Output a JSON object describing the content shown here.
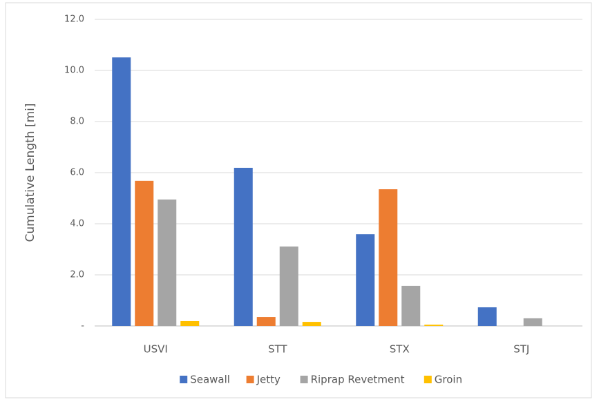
{
  "chart_data": {
    "type": "bar",
    "y_label": "Cumulative Length [mi]",
    "categories": [
      "USVI",
      "STT",
      "STX",
      "STJ"
    ],
    "series": [
      {
        "name": "Seawall",
        "color": "#4472c4",
        "values": [
          10.51,
          6.19,
          3.59,
          0.73
        ]
      },
      {
        "name": "Jetty",
        "color": "#ed7d31",
        "values": [
          5.68,
          0.35,
          5.35,
          0
        ]
      },
      {
        "name": "Riprap Revetment",
        "color": "#a5a5a5",
        "values": [
          4.95,
          3.11,
          1.57,
          0.3
        ]
      },
      {
        "name": "Groin",
        "color": "#ffc000",
        "values": [
          0.19,
          0.16,
          0.05,
          0
        ]
      }
    ],
    "ylim": [
      0,
      12
    ],
    "yticks": [
      {
        "value": 0,
        "label": "-"
      },
      {
        "value": 2,
        "label": "2.0"
      },
      {
        "value": 4,
        "label": "4.0"
      },
      {
        "value": 6,
        "label": "6.0"
      },
      {
        "value": 8,
        "label": "8.0"
      },
      {
        "value": 10,
        "label": "10.0"
      },
      {
        "value": 12,
        "label": "12.0"
      }
    ],
    "grid": true,
    "legend": "bottom"
  }
}
